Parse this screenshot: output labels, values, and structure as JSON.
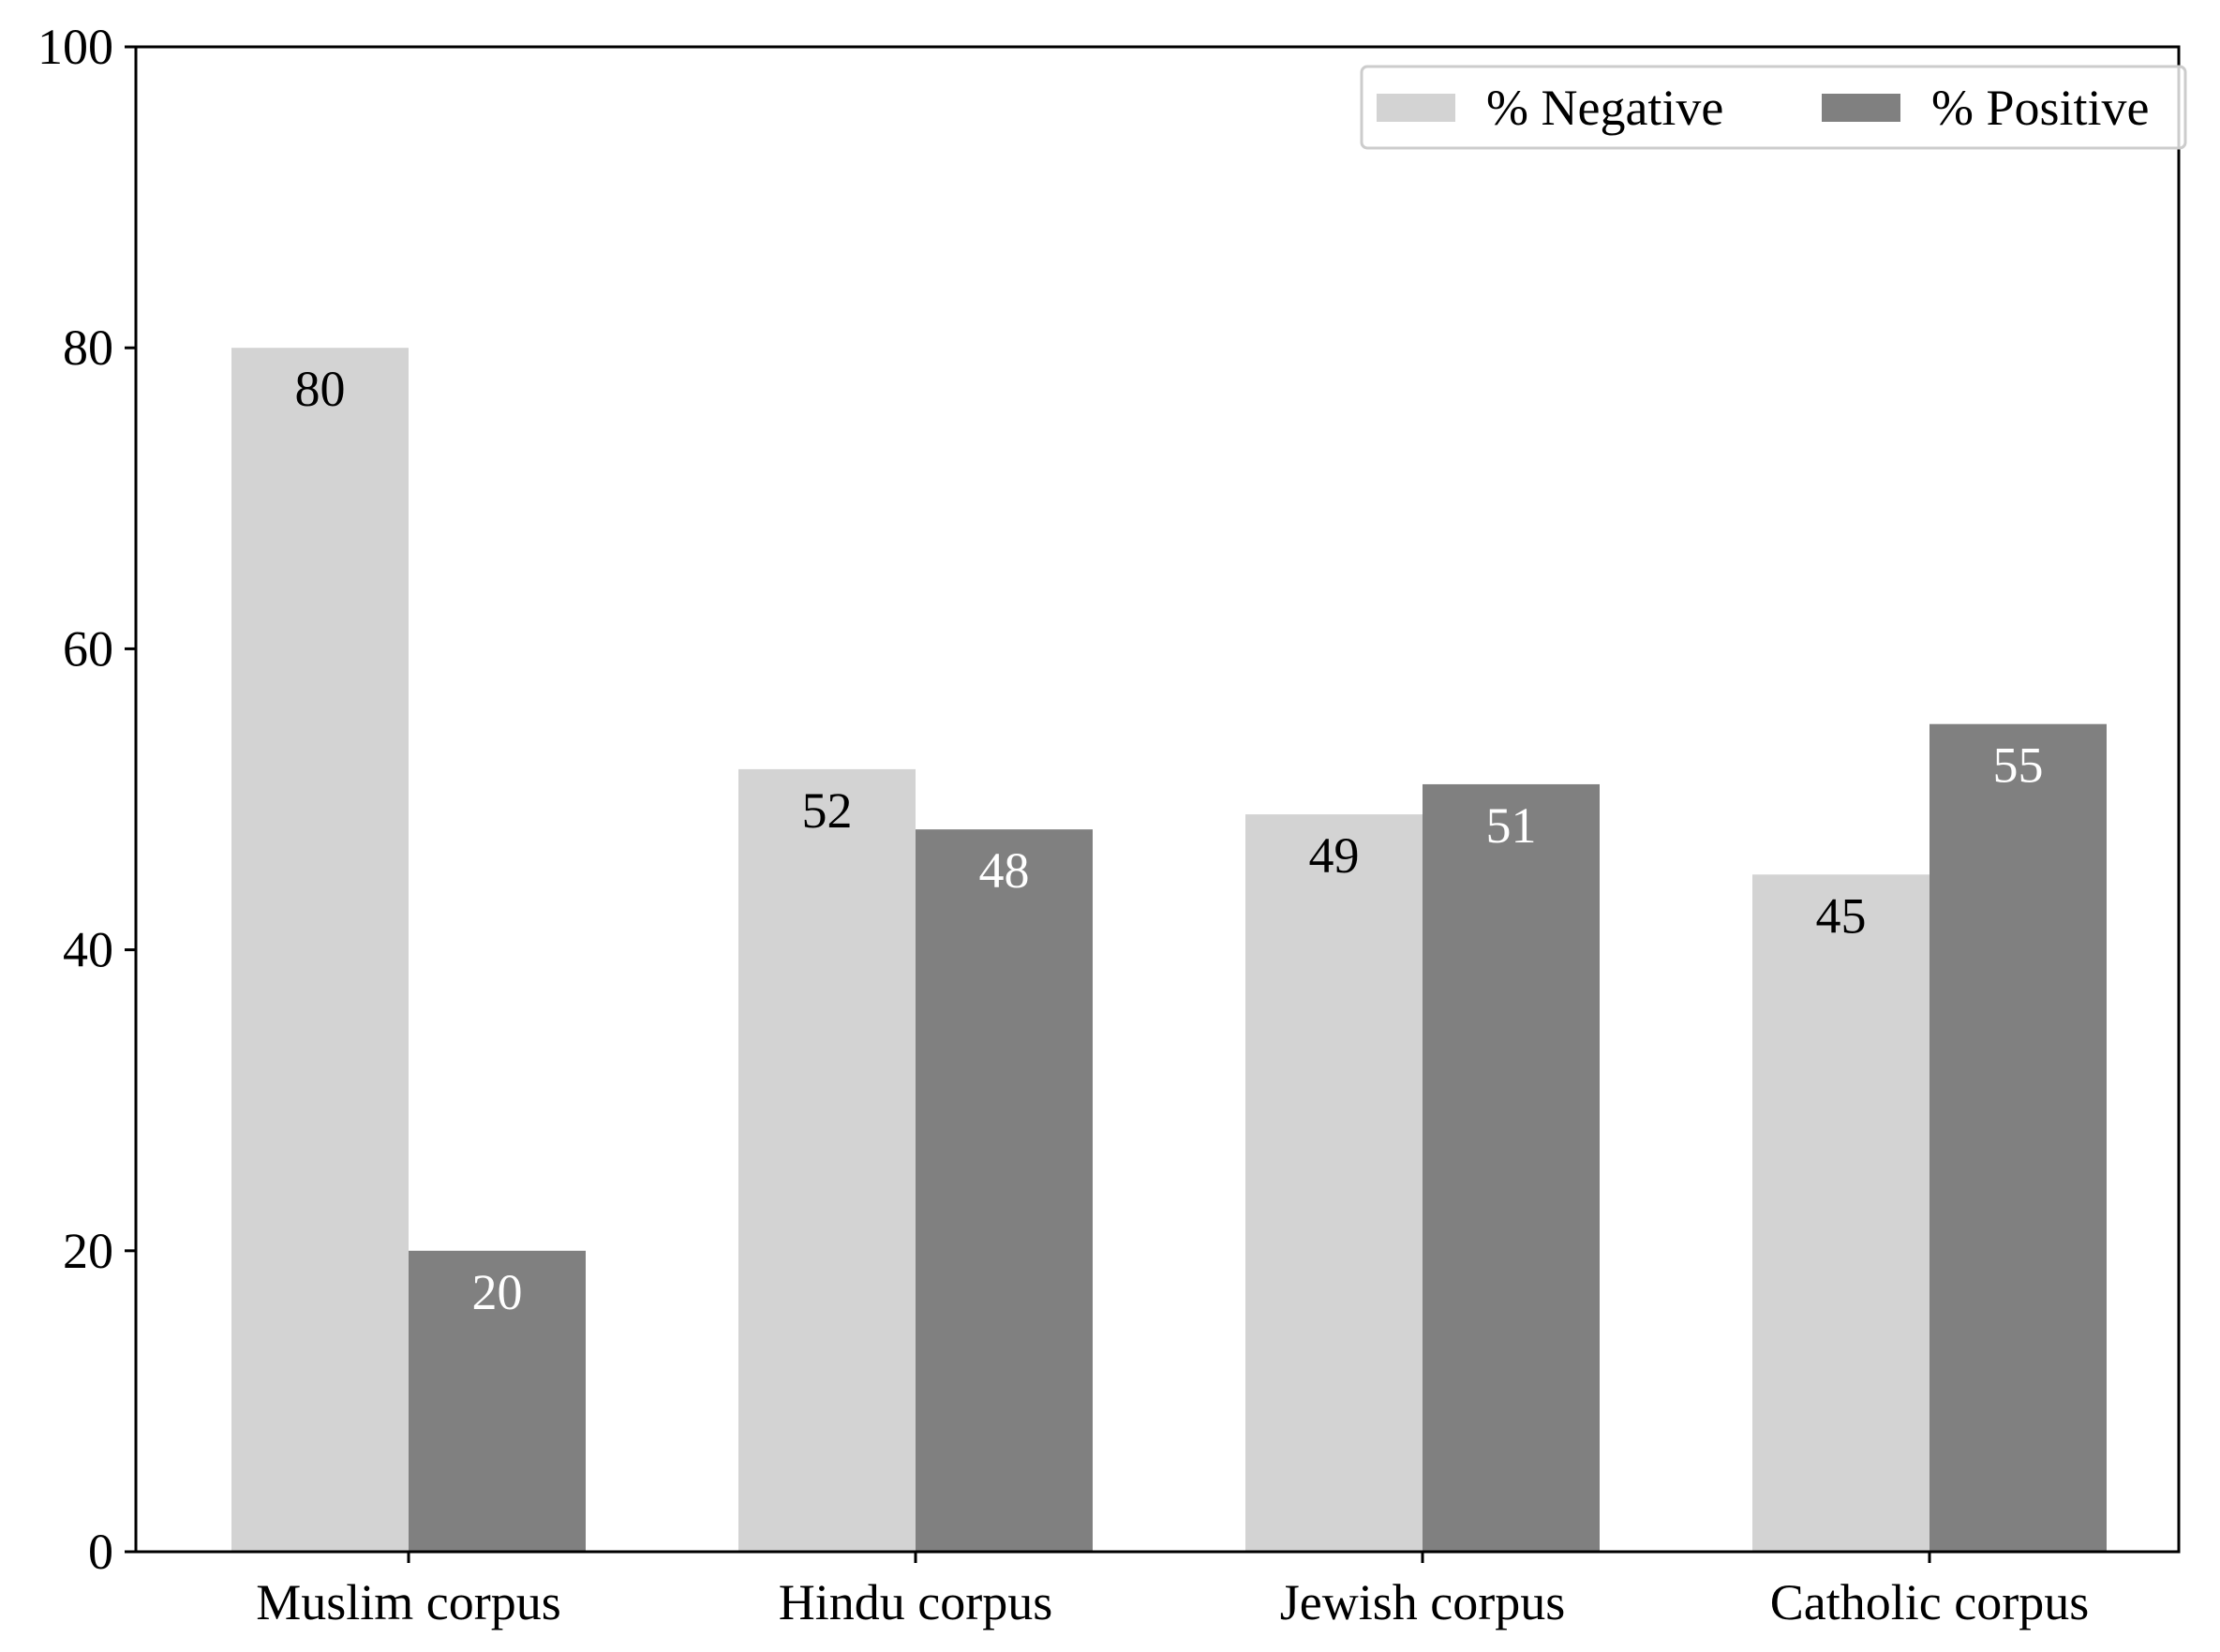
{
  "chart_data": {
    "type": "bar",
    "categories": [
      "Muslim corpus",
      "Hindu corpus",
      "Jewish corpus",
      "Catholic corpus"
    ],
    "series": [
      {
        "name": "% Negative",
        "values": [
          80,
          52,
          49,
          45
        ],
        "color": "#d3d3d3",
        "label_color": "#000000"
      },
      {
        "name": "% Positive",
        "values": [
          20,
          48,
          51,
          55
        ],
        "color": "#808080",
        "label_color": "#ffffff"
      }
    ],
    "ylim": [
      0,
      100
    ],
    "yticks": [
      0,
      20,
      40,
      60,
      80,
      100
    ],
    "title": "",
    "xlabel": "",
    "ylabel": "",
    "legend": {
      "position": "top-right",
      "entries": [
        "% Negative",
        "% Positive"
      ]
    },
    "grid": false
  }
}
